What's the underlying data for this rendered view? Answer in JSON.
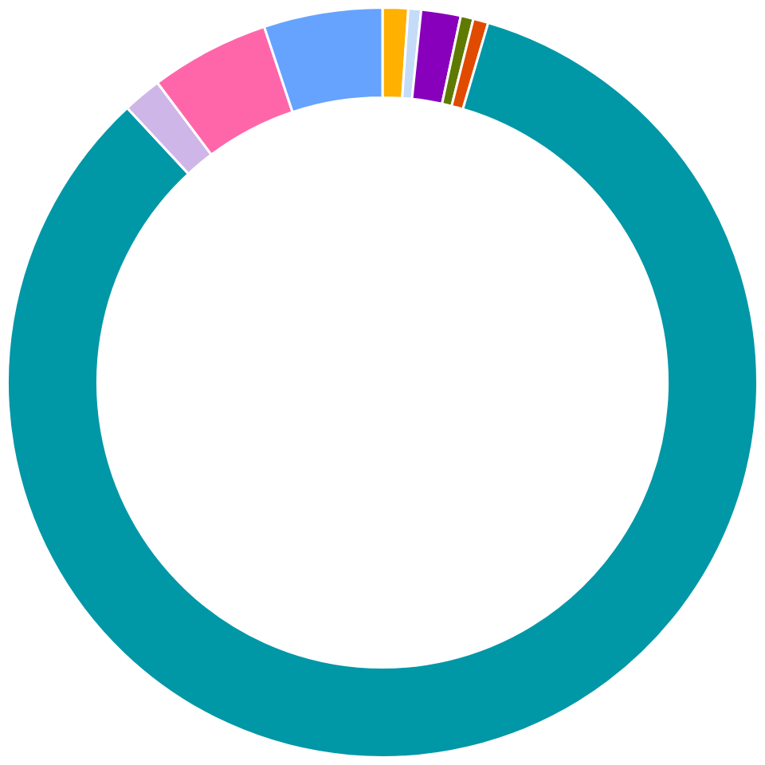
{
  "chart_data": {
    "type": "donut",
    "categories": [
      null,
      null,
      null,
      null,
      null,
      null,
      null,
      null,
      null
    ],
    "values": [
      1.1,
      0.55,
      1.7,
      0.55,
      0.65,
      83.53,
      1.67,
      5.14,
      5.11
    ],
    "colors": [
      "#ffb000",
      "#c5dcf9",
      "#8800bb",
      "#5f7a00",
      "#e04b00",
      "#0097a7",
      "#cfb6e8",
      "#ff66aa",
      "#66a3ff"
    ],
    "legend": false
  }
}
